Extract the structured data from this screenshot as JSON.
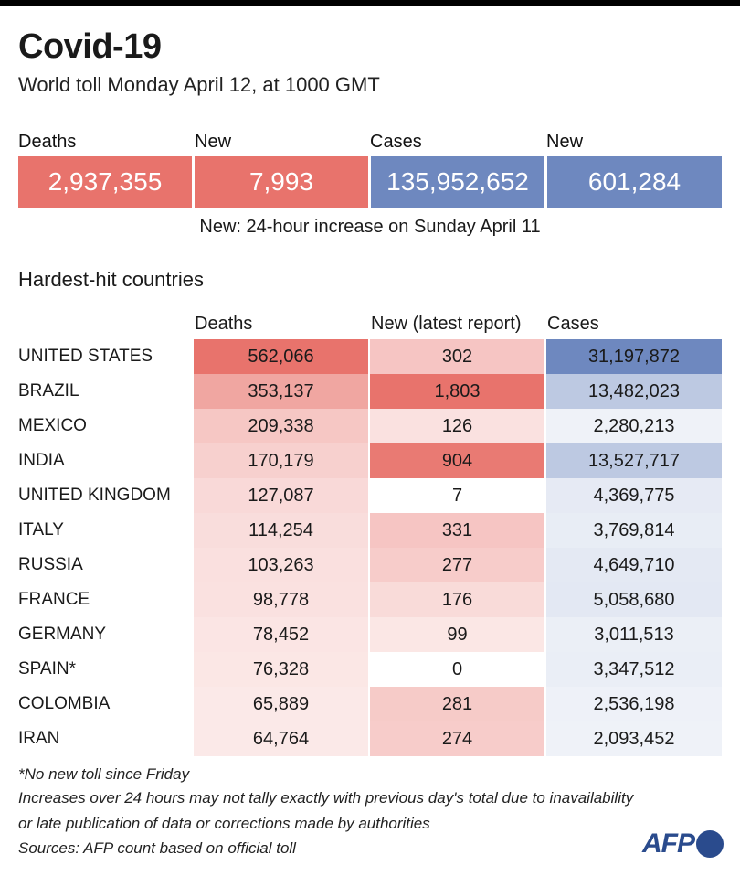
{
  "header": {
    "title": "Covid-19",
    "subtitle": "World toll Monday April 12,  at 1000 GMT"
  },
  "world": {
    "deaths_label": "Deaths",
    "deaths_value": "2,937,355",
    "new_deaths_label": "New",
    "new_deaths_value": "7,993",
    "cases_label": "Cases",
    "cases_value": "135,952,652",
    "new_cases_label": "New",
    "new_cases_value": "601,284",
    "note": "New: 24-hour increase on Sunday April 11"
  },
  "table": {
    "title": "Hardest-hit countries",
    "headers": {
      "deaths": "Deaths",
      "new": "New (latest report)",
      "cases": "Cases"
    },
    "rows": [
      {
        "country": "UNITED STATES",
        "deaths": "562,066",
        "new": "302",
        "cases": "31,197,872",
        "deaths_shade": 1.0,
        "new_shade": 0.38,
        "cases_shade": 1.0
      },
      {
        "country": "BRAZIL",
        "deaths": "353,137",
        "new": "1,803",
        "cases": "13,482,023",
        "deaths_shade": 0.62,
        "new_shade": 1.0,
        "cases_shade": 0.43
      },
      {
        "country": "MEXICO",
        "deaths": "209,338",
        "new": "126",
        "cases": "2,280,213",
        "deaths_shade": 0.37,
        "new_shade": 0.17,
        "cases_shade": 0.07
      },
      {
        "country": "INDIA",
        "deaths": "170,179",
        "new": "904",
        "cases": "13,527,717",
        "deaths_shade": 0.3,
        "new_shade": 0.95,
        "cases_shade": 0.43
      },
      {
        "country": "UNITED KINGDOM",
        "deaths": "127,087",
        "new": "7",
        "cases": "4,369,775",
        "deaths_shade": 0.23,
        "new_shade": 0.0,
        "cases_shade": 0.14
      },
      {
        "country": "ITALY",
        "deaths": "114,254",
        "new": "331",
        "cases": "3,769,814",
        "deaths_shade": 0.2,
        "new_shade": 0.38,
        "cases_shade": 0.12
      },
      {
        "country": "RUSSIA",
        "deaths": "103,263",
        "new": "277",
        "cases": "4,649,710",
        "deaths_shade": 0.18,
        "new_shade": 0.33,
        "cases_shade": 0.15
      },
      {
        "country": "FRANCE",
        "deaths": "98,778",
        "new": "176",
        "cases": "5,058,680",
        "deaths_shade": 0.17,
        "new_shade": 0.22,
        "cases_shade": 0.16
      },
      {
        "country": "GERMANY",
        "deaths": "78,452",
        "new": "99",
        "cases": "3,011,513",
        "deaths_shade": 0.14,
        "new_shade": 0.13,
        "cases_shade": 0.1
      },
      {
        "country": "SPAIN*",
        "deaths": "76,328",
        "new": "0",
        "cases": "3,347,512",
        "deaths_shade": 0.13,
        "new_shade": 0.0,
        "cases_shade": 0.11
      },
      {
        "country": "COLOMBIA",
        "deaths": "65,889",
        "new": "281",
        "cases": "2,536,198",
        "deaths_shade": 0.11,
        "new_shade": 0.34,
        "cases_shade": 0.08
      },
      {
        "country": "IRAN",
        "deaths": "64,764",
        "new": "274",
        "cases": "2,093,452",
        "deaths_shade": 0.11,
        "new_shade": 0.33,
        "cases_shade": 0.07
      }
    ]
  },
  "footnotes": {
    "line1": "*No new toll since Friday",
    "line2": "Increases over 24 hours may not tally exactly with previous day's total due to inavailability",
    "line3": "or late publication of data or corrections made by authorities",
    "line4": "Sources: AFP count based on official toll"
  },
  "logo": {
    "text": "AFP"
  },
  "colors": {
    "red_strong": "#e8736c",
    "blue_strong": "#6e88bf",
    "white": "#ffffff"
  }
}
